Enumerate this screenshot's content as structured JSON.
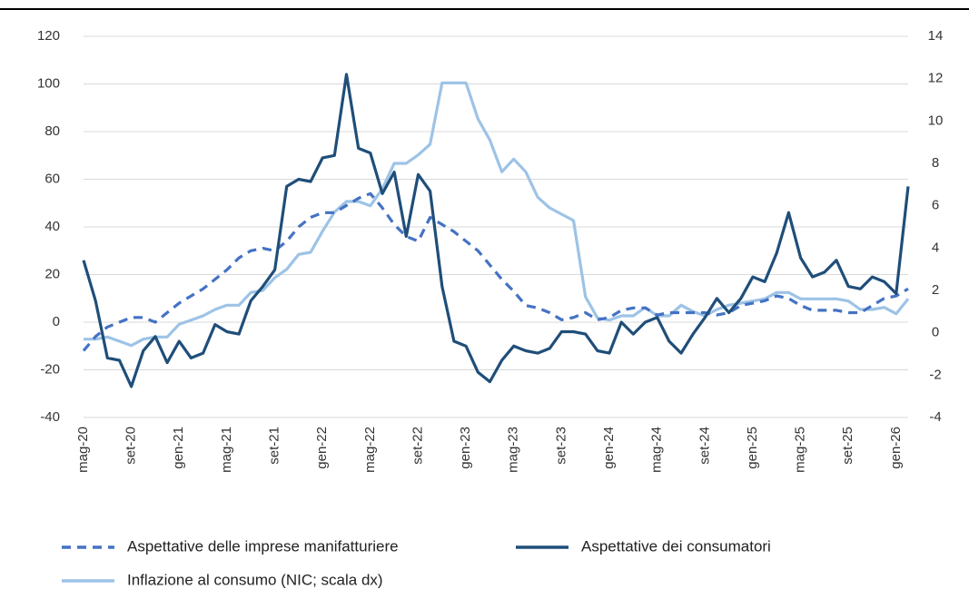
{
  "chart_data": {
    "type": "line",
    "categories": [
      "mag-20",
      null,
      null,
      null,
      "set-20",
      null,
      null,
      null,
      "gen-21",
      null,
      null,
      null,
      "mag-21",
      null,
      null,
      null,
      "set-21",
      null,
      null,
      null,
      "gen-22",
      null,
      null,
      null,
      "mag-22",
      null,
      null,
      null,
      "set-22",
      null,
      null,
      null,
      "gen-23",
      null,
      null,
      null,
      "mag-23",
      null,
      null,
      null,
      "set-23",
      null,
      null,
      null,
      "gen-24",
      null,
      null,
      null,
      "mag-24",
      null,
      null,
      null,
      "set-24",
      null,
      null,
      null,
      "gen-25",
      null,
      null,
      null,
      "mag-25",
      null,
      null,
      null,
      "set-25",
      null,
      null,
      null,
      "gen-26",
      null
    ],
    "series": [
      {
        "name": "Aspettative delle imprese manifatturiere",
        "color": "#4472c4",
        "dashed": true,
        "values": [
          -12,
          -6,
          -2,
          0,
          2,
          2,
          0,
          4,
          8,
          11,
          14,
          18,
          22,
          27,
          30,
          31,
          30,
          34,
          40,
          44,
          46,
          46,
          49,
          52,
          54,
          48,
          41,
          36,
          34,
          44,
          41,
          38,
          34,
          30,
          24,
          18,
          13,
          7,
          6,
          4,
          1,
          2,
          4,
          1,
          2,
          5,
          6,
          6,
          3,
          4,
          4,
          4,
          4,
          3,
          4,
          7,
          8,
          9,
          11,
          10,
          7,
          5,
          5,
          5,
          4,
          4,
          7,
          10,
          11,
          14
        ]
      },
      {
        "name": "Aspettative dei consumatori",
        "color": "#1f4e79",
        "values": [
          26,
          9,
          -15,
          -16,
          -27,
          -12,
          -6,
          -17,
          -8,
          -15,
          -13,
          -1,
          -4,
          -5,
          9,
          15,
          22,
          57,
          60,
          59,
          69,
          70,
          104,
          73,
          71,
          54,
          63,
          36,
          62,
          55,
          15,
          -8,
          -10,
          -21,
          -25,
          -16,
          -10,
          -12,
          -13,
          -11,
          -4,
          -4,
          -5,
          -12,
          -13,
          0,
          -5,
          0,
          2,
          -8,
          -13,
          -5,
          2,
          10,
          4,
          10,
          19,
          17,
          29,
          46,
          27,
          19,
          21,
          26,
          15,
          14,
          19,
          17,
          12,
          57
        ]
      },
      {
        "name": "Inflazione al consumo (NIC; scala dx)",
        "color": "#9dc3e6",
        "axis": "y2",
        "values": [
          -0.3,
          -0.3,
          -0.2,
          -0.4,
          -0.6,
          -0.3,
          -0.2,
          -0.2,
          0.4,
          0.6,
          0.8,
          1.1,
          1.3,
          1.3,
          1.9,
          2.0,
          2.6,
          3.0,
          3.7,
          3.8,
          4.8,
          5.7,
          6.2,
          6.2,
          6.0,
          6.8,
          8.0,
          8.0,
          8.4,
          8.9,
          11.8,
          11.8,
          11.8,
          10.1,
          9.1,
          7.6,
          8.2,
          7.6,
          6.4,
          5.9,
          5.6,
          5.3,
          1.7,
          0.7,
          0.6,
          0.8,
          0.8,
          1.2,
          0.8,
          0.8,
          1.3,
          1.0,
          0.8,
          1.1,
          1.3,
          1.4,
          1.5,
          1.6,
          1.9,
          1.9,
          1.6,
          1.6,
          1.6,
          1.6,
          1.5,
          1.1,
          1.1,
          1.2,
          0.9,
          1.6
        ]
      }
    ],
    "ylim": [
      -40,
      120
    ],
    "yticks": [
      -40,
      -20,
      0,
      20,
      40,
      60,
      80,
      100,
      120
    ],
    "y2lim": [
      -4,
      14
    ],
    "y2ticks": [
      -4,
      -2,
      0,
      2,
      4,
      6,
      8,
      10,
      12,
      14
    ],
    "grid": true
  }
}
